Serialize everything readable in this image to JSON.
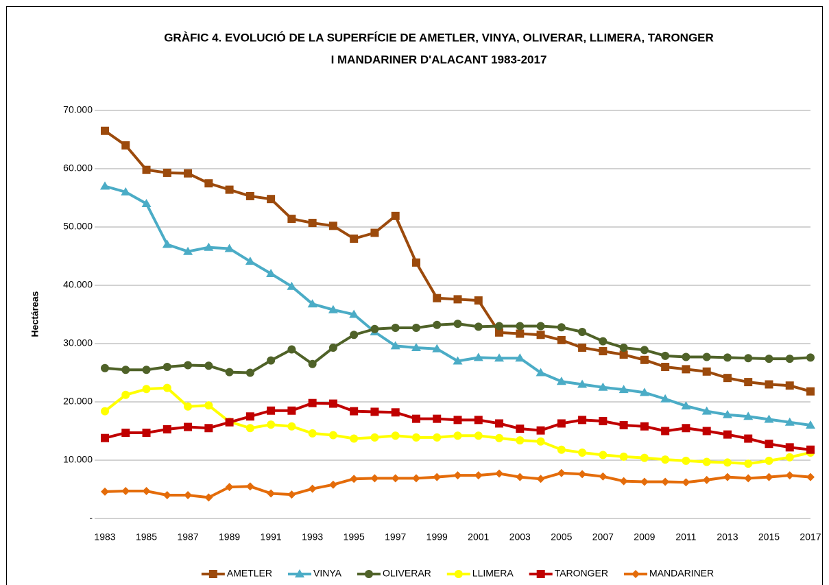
{
  "chart_data": {
    "type": "line",
    "title": [
      "GRÀFIC 4. EVOLUCIÓ DE LA SUPERFÍCIE DE AMETLER, VINYA, OLIVERAR, LLIMERA, TARONGER",
      "I MANDARINER D'ALACANT 1983-2017"
    ],
    "y_label": "Hectáreas",
    "categories": [
      "1983",
      null,
      "1985",
      null,
      "1987",
      null,
      "1989",
      null,
      "1991",
      null,
      "1993",
      null,
      "1995",
      null,
      "1997",
      null,
      "1999",
      null,
      "2001",
      null,
      "2003",
      null,
      "2005",
      null,
      "2007",
      null,
      "2009",
      null,
      "2011",
      null,
      "2013",
      null,
      "2015",
      null,
      "2017"
    ],
    "ylim": [
      0,
      70000
    ],
    "yticks": [
      {
        "value": 0,
        "label": "-"
      },
      {
        "value": 10000,
        "label": "10.000"
      },
      {
        "value": 20000,
        "label": "20.000"
      },
      {
        "value": 30000,
        "label": "30.000"
      },
      {
        "value": 40000,
        "label": "40.000"
      },
      {
        "value": 50000,
        "label": "50.000"
      },
      {
        "value": 60000,
        "label": "60.000"
      },
      {
        "value": 70000,
        "label": "70.000"
      }
    ],
    "grid": true,
    "legend": "bottom",
    "series": [
      {
        "name": "AMETLER",
        "color": "#9c4a0c",
        "marker": "square",
        "values": [
          66500,
          64000,
          59800,
          59300,
          59200,
          57500,
          56400,
          55300,
          54800,
          51400,
          50700,
          50200,
          48000,
          49000,
          51900,
          43900,
          37800,
          37600,
          37400,
          31900,
          31700,
          31500,
          30600,
          29300,
          28700,
          28100,
          27200,
          26000,
          25600,
          25200,
          24100,
          23400,
          23000,
          22800,
          21800
        ]
      },
      {
        "name": "VINYA",
        "color": "#4bacc6",
        "marker": "triangle",
        "values": [
          57000,
          56000,
          54000,
          47000,
          45800,
          46500,
          46300,
          44100,
          42000,
          39800,
          36800,
          35800,
          35000,
          32000,
          29600,
          29300,
          29100,
          27000,
          27600,
          27500,
          27500,
          25000,
          23500,
          23000,
          22500,
          22100,
          21600,
          20500,
          19300,
          18400,
          17800,
          17500,
          17000,
          16500,
          16000
        ]
      },
      {
        "name": "OLIVERAR",
        "color": "#4f6228",
        "marker": "circle",
        "values": [
          25800,
          25500,
          25500,
          26000,
          26300,
          26200,
          25100,
          25000,
          27100,
          29000,
          26500,
          29300,
          31500,
          32500,
          32700,
          32700,
          33200,
          33400,
          32900,
          33000,
          33000,
          33000,
          32800,
          32000,
          30400,
          29300,
          28900,
          27900,
          27700,
          27700,
          27600,
          27500,
          27400,
          27400,
          27600
        ]
      },
      {
        "name": "LLIMERA",
        "color": "#ffff00",
        "marker": "circle",
        "values": [
          18400,
          21200,
          22200,
          22400,
          19200,
          19400,
          16600,
          15500,
          16100,
          15800,
          14600,
          14300,
          13700,
          13900,
          14200,
          13900,
          13900,
          14200,
          14200,
          13800,
          13400,
          13200,
          11800,
          11300,
          10900,
          10600,
          10400,
          10100,
          9900,
          9700,
          9600,
          9400,
          9900,
          10500,
          11300
        ]
      },
      {
        "name": "TARONGER",
        "color": "#c00000",
        "marker": "square",
        "values": [
          13800,
          14700,
          14700,
          15300,
          15700,
          15500,
          16500,
          17500,
          18500,
          18500,
          19800,
          19700,
          18400,
          18300,
          18200,
          17100,
          17100,
          16900,
          16900,
          16300,
          15400,
          15100,
          16300,
          16900,
          16700,
          16000,
          15800,
          15000,
          15500,
          15000,
          14400,
          13700,
          12800,
          12200,
          11800
        ]
      },
      {
        "name": "MANDARINER",
        "color": "#e46c0a",
        "marker": "diamond",
        "values": [
          4600,
          4700,
          4700,
          4000,
          4000,
          3600,
          5400,
          5500,
          4300,
          4100,
          5100,
          5800,
          6800,
          6900,
          6900,
          6900,
          7100,
          7400,
          7400,
          7700,
          7100,
          6800,
          7800,
          7600,
          7200,
          6400,
          6300,
          6300,
          6200,
          6600,
          7100,
          6900,
          7100,
          7400,
          7100
        ]
      }
    ]
  }
}
